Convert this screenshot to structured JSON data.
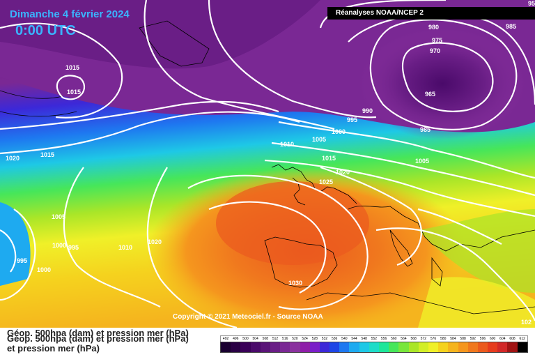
{
  "header": {
    "date": "Dimanche 4 février 2024",
    "time": "0:00 UTC"
  },
  "source": "Réanalyses NOAA/NCEP 2",
  "copyright": "Copyright © 2021 Meteociel.fr - Source NOAA",
  "legend": {
    "line1": "Géop. 500hpa (dam) et pression mer (hPa)",
    "line2": "Géop. 500hpa (dam) et pression mer (hPa)",
    "line3": "et pression mer (hPa)",
    "scale_values": [
      "492",
      "496",
      "500",
      "504",
      "508",
      "512",
      "516",
      "520",
      "524",
      "528",
      "532",
      "536",
      "540",
      "544",
      "548",
      "552",
      "556",
      "560",
      "564",
      "568",
      "572",
      "576",
      "580",
      "584",
      "588",
      "592",
      "596",
      "600",
      "604",
      "608",
      "612"
    ],
    "scale_colors": [
      "#1a0030",
      "#2a0045",
      "#3a0058",
      "#4a0a6a",
      "#5a1478",
      "#6a1e86",
      "#7a2894",
      "#8a329e",
      "#8e1ea8",
      "#7a1ec8",
      "#3c28d8",
      "#1e46e6",
      "#1e78f0",
      "#1eaaf0",
      "#1ec8e6",
      "#1edcc8",
      "#1ee69a",
      "#46e65a",
      "#78e63c",
      "#aae628",
      "#d2ee28",
      "#f0f028",
      "#f5d21e",
      "#f5b41e",
      "#f5961e",
      "#f0781e",
      "#eb5a1e",
      "#e63c1e",
      "#d22828",
      "#a01414",
      "#000000"
    ]
  },
  "isobars": [
    "1015",
    "1015",
    "1020",
    "1015",
    "1005",
    "1000",
    "995",
    "995",
    "1000",
    "1010",
    "1020",
    "1010",
    "1005",
    "1000",
    "995",
    "990",
    "1015",
    "1025",
    "1020",
    "1005",
    "985",
    "980",
    "975",
    "970",
    "965",
    "985",
    "95",
    "1030",
    "102"
  ]
}
